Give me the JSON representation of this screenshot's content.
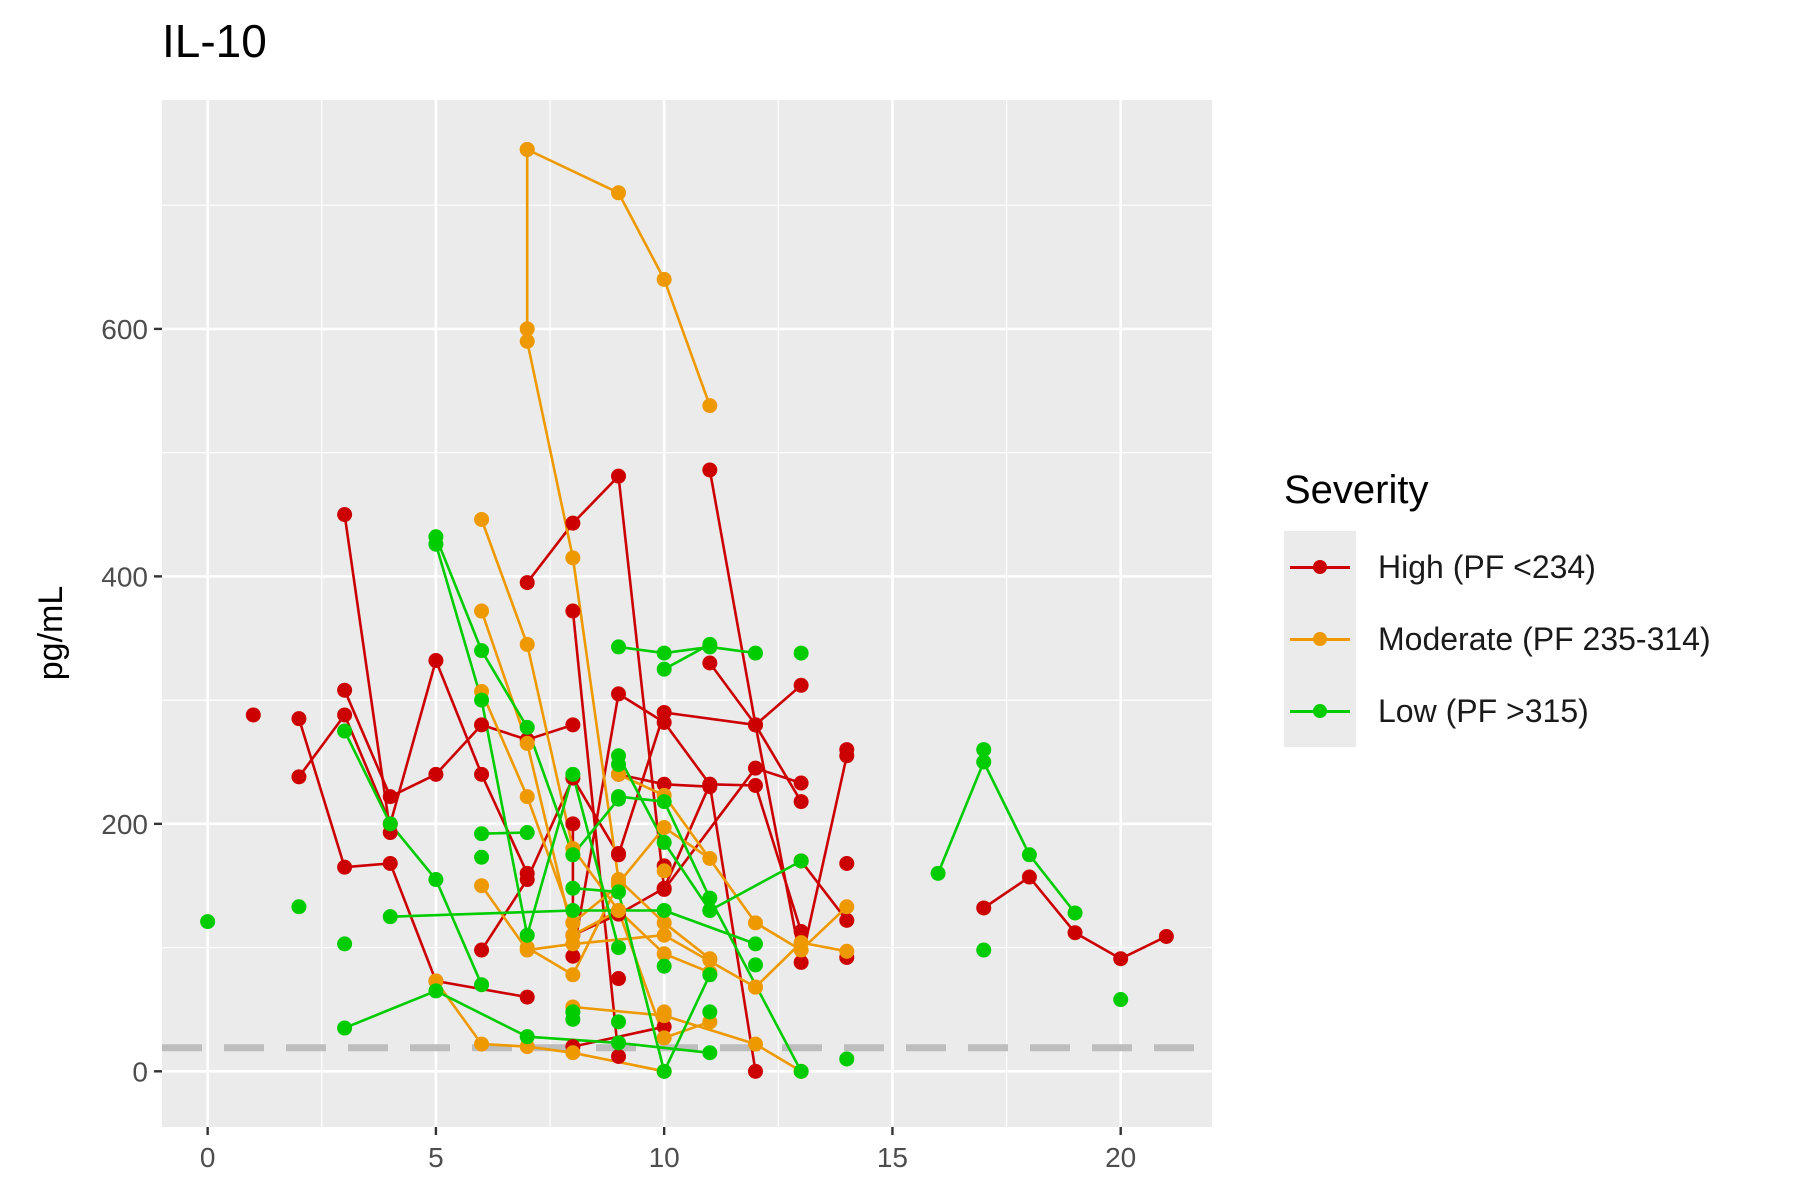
{
  "chart_data": {
    "type": "line",
    "title": "IL-10",
    "xlabel": "",
    "ylabel": "pg/mL",
    "xlim": [
      -1,
      22
    ],
    "ylim": [
      -45,
      785
    ],
    "x_ticks": [
      0,
      5,
      10,
      15,
      20
    ],
    "y_ticks": [
      0,
      200,
      400,
      600
    ],
    "grid": true,
    "legend_position": "right",
    "reference_line": {
      "y": 19,
      "style": "dashed",
      "color": "#bdbdbd"
    },
    "legend_title": "Severity",
    "series": [
      {
        "name": "High (PF <234)",
        "color": "#CC0000",
        "lines": [
          [
            [
              3,
              450
            ],
            [
              4,
              193
            ]
          ],
          [
            [
              3,
              308
            ],
            [
              4,
              222
            ],
            [
              5,
              240
            ],
            [
              6,
              280
            ],
            [
              7,
              268
            ],
            [
              8,
              280
            ]
          ],
          [
            [
              2,
              285
            ],
            [
              3,
              165
            ],
            [
              4,
              168
            ],
            [
              5,
              73
            ],
            [
              7,
              60
            ]
          ],
          [
            [
              2,
              238
            ],
            [
              3,
              288
            ],
            [
              4,
              200
            ],
            [
              5,
              332
            ],
            [
              6,
              240
            ],
            [
              7,
              160
            ]
          ],
          [
            [
              6,
              98
            ],
            [
              7,
              155
            ],
            [
              8,
              237
            ],
            [
              9,
              175
            ],
            [
              10,
              290
            ],
            [
              12,
              280
            ],
            [
              13,
              218
            ]
          ],
          [
            [
              7,
              395
            ],
            [
              8,
              443
            ],
            [
              9,
              481
            ],
            [
              10,
              147
            ],
            [
              12,
              245
            ],
            [
              13,
              233
            ]
          ],
          [
            [
              8,
              372
            ],
            [
              9,
              12
            ]
          ],
          [
            [
              8,
              200
            ],
            [
              8,
              93
            ],
            [
              9,
              305
            ],
            [
              10,
              282
            ],
            [
              11,
              232
            ],
            [
              12,
              231
            ],
            [
              13,
              113
            ]
          ],
          [
            [
              11,
              486
            ],
            [
              12,
              280
            ],
            [
              13,
              88
            ],
            [
              14,
              255
            ]
          ],
          [
            [
              11,
              330
            ],
            [
              12,
              280
            ],
            [
              13,
              312
            ]
          ],
          [
            [
              9,
              240
            ],
            [
              10,
              232
            ],
            [
              11,
              230
            ]
          ],
          [
            [
              8,
              110
            ],
            [
              9,
              127
            ],
            [
              10,
              148
            ],
            [
              11,
              232
            ],
            [
              12,
              0
            ]
          ],
          [
            [
              8,
              20
            ],
            [
              10,
              36
            ]
          ],
          [
            [
              13,
              170
            ],
            [
              14,
              122
            ]
          ],
          [
            [
              17,
              132
            ],
            [
              18,
              157
            ],
            [
              19,
              112
            ],
            [
              20,
              91
            ],
            [
              21,
              109
            ]
          ]
        ],
        "points": [
          [
            1,
            288
          ],
          [
            9,
            75
          ],
          [
            14,
            260
          ],
          [
            14,
            168
          ],
          [
            14,
            92
          ],
          [
            9,
            176
          ],
          [
            10,
            166
          ]
        ]
      },
      {
        "name": "Moderate (PF 235-314)",
        "color": "#EE9900",
        "lines": [
          [
            [
              7,
              745
            ],
            [
              7,
              600
            ],
            [
              7,
              590
            ],
            [
              8,
              415
            ],
            [
              9,
              155
            ],
            [
              10,
              120
            ],
            [
              11,
              91
            ]
          ],
          [
            [
              7,
              745
            ],
            [
              9,
              710
            ],
            [
              10,
              640
            ],
            [
              11,
              538
            ]
          ],
          [
            [
              6,
              446
            ],
            [
              7,
              345
            ],
            [
              8,
              180
            ],
            [
              9,
              130
            ],
            [
              10,
              95
            ],
            [
              11,
              80
            ]
          ],
          [
            [
              6,
              372
            ],
            [
              7,
              265
            ],
            [
              8,
              110
            ],
            [
              9,
              130
            ],
            [
              10,
              27
            ],
            [
              11,
              40
            ]
          ],
          [
            [
              6,
              307
            ],
            [
              7,
              222
            ],
            [
              8,
              120
            ],
            [
              9,
              150
            ]
          ],
          [
            [
              7,
              100
            ],
            [
              8,
              78
            ],
            [
              9,
              152
            ],
            [
              10,
              197
            ],
            [
              11,
              172
            ]
          ],
          [
            [
              5,
              73
            ],
            [
              6,
              22
            ],
            [
              7,
              20
            ],
            [
              8,
              15
            ],
            [
              10,
              0
            ]
          ],
          [
            [
              8,
              52
            ],
            [
              10,
              45
            ],
            [
              12,
              22
            ],
            [
              13,
              0
            ]
          ],
          [
            [
              9,
              240
            ],
            [
              10,
              223
            ],
            [
              12,
              120
            ],
            [
              13,
              98
            ],
            [
              14,
              133
            ]
          ],
          [
            [
              6,
              150
            ],
            [
              7,
              98
            ],
            [
              8,
              103
            ],
            [
              10,
              110
            ],
            [
              12,
              68
            ],
            [
              13,
              104
            ],
            [
              14,
              97
            ]
          ]
        ],
        "points": [
          [
            8,
            120
          ],
          [
            10,
            48
          ],
          [
            10,
            162
          ],
          [
            11,
            90
          ],
          [
            12,
            68
          ]
        ]
      },
      {
        "name": "Low (PF >315)",
        "color": "#00CC00",
        "lines": [
          [
            [
              5,
              432
            ],
            [
              6,
              340
            ],
            [
              7,
              278
            ],
            [
              8,
              175
            ],
            [
              9,
              220
            ]
          ],
          [
            [
              5,
              426
            ],
            [
              6,
              300
            ],
            [
              7,
              110
            ],
            [
              8,
              240
            ],
            [
              9,
              100
            ]
          ],
          [
            [
              3,
              275
            ],
            [
              4,
              200
            ],
            [
              5,
              155
            ],
            [
              6,
              70
            ]
          ],
          [
            [
              3,
              35
            ],
            [
              5,
              65
            ],
            [
              7,
              28
            ],
            [
              9,
              23
            ],
            [
              11,
              15
            ]
          ],
          [
            [
              4,
              125
            ],
            [
              8,
              130
            ],
            [
              10,
              130
            ],
            [
              12,
              103
            ]
          ],
          [
            [
              6,
              192
            ],
            [
              7,
              193
            ]
          ],
          [
            [
              9,
              343
            ],
            [
              10,
              338
            ],
            [
              11,
              343
            ],
            [
              12,
              338
            ]
          ],
          [
            [
              10,
              325
            ],
            [
              11,
              345
            ]
          ],
          [
            [
              9,
              255
            ],
            [
              10,
              185
            ],
            [
              11,
              130
            ],
            [
              13,
              170
            ]
          ],
          [
            [
              9,
              222
            ],
            [
              10,
              218
            ],
            [
              11,
              140
            ],
            [
              13,
              0
            ]
          ],
          [
            [
              8,
              148
            ],
            [
              9,
              145
            ],
            [
              10,
              0
            ],
            [
              11,
              78
            ]
          ],
          [
            [
              16,
              160
            ],
            [
              17,
              250
            ],
            [
              18,
              175
            ],
            [
              19,
              128
            ]
          ]
        ],
        "points": [
          [
            0,
            121
          ],
          [
            2,
            133
          ],
          [
            3,
            103
          ],
          [
            6,
            173
          ],
          [
            8,
            42
          ],
          [
            8,
            48
          ],
          [
            9,
            40
          ],
          [
            10,
            85
          ],
          [
            11,
            48
          ],
          [
            11,
            130
          ],
          [
            12,
            86
          ],
          [
            13,
            338
          ],
          [
            14,
            10
          ],
          [
            17,
            260
          ],
          [
            17,
            98
          ],
          [
            20,
            58
          ],
          [
            9,
            248
          ]
        ]
      }
    ]
  }
}
